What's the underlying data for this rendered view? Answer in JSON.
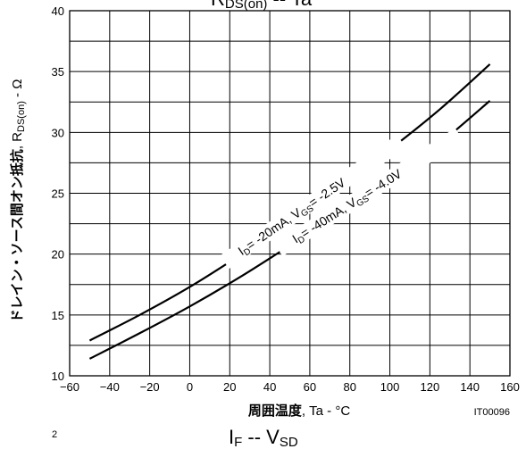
{
  "chart_data": {
    "type": "line",
    "title_main": "R",
    "title_sub": "DS(on)",
    "title_rest": " -- Ta",
    "ylabel_main": "ドレイン・ソース間オン抵抗",
    "ylabel_sym": ", R",
    "ylabel_sub": "DS(on)",
    "ylabel_unit": " - Ω",
    "xlabel_main": "周囲温度",
    "xlabel_rest": ", Ta - °C",
    "code": "IT00096",
    "xlim": [
      -60,
      160
    ],
    "ylim": [
      10,
      40
    ],
    "x_ticks": [
      "−60",
      "−40",
      "−20",
      "0",
      "20",
      "40",
      "60",
      "80",
      "100",
      "120",
      "140",
      "160"
    ],
    "y_ticks": [
      "10",
      "15",
      "20",
      "25",
      "30",
      "35",
      "40"
    ],
    "grid": true,
    "series": [
      {
        "label": "ID= -20mA, VGS= -2.5V",
        "label_parts": [
          "I",
          "D",
          "= -20mA, V",
          "GS",
          "= -2.5V"
        ],
        "x": [
          -50,
          -25,
          0,
          25,
          50,
          75,
          100,
          125,
          150
        ],
        "y": [
          12.9,
          15.0,
          17.3,
          19.9,
          22.7,
          25.6,
          28.6,
          31.9,
          35.6
        ]
      },
      {
        "label": "ID= -40mA, VGS= -4.0V",
        "label_parts": [
          "I",
          "D",
          "= -40mA, V",
          "GS",
          "= -4.0V"
        ],
        "x": [
          -50,
          -25,
          0,
          25,
          50,
          75,
          100,
          125,
          150
        ],
        "y": [
          11.4,
          13.5,
          15.7,
          18.1,
          20.7,
          23.3,
          26.0,
          29.1,
          32.6
        ]
      }
    ]
  },
  "footer": {
    "next_title_main": "I",
    "next_title_sub": "F",
    "next_title_mid": " -- V",
    "next_title_sub2": "SD",
    "corner_mark": "2"
  }
}
